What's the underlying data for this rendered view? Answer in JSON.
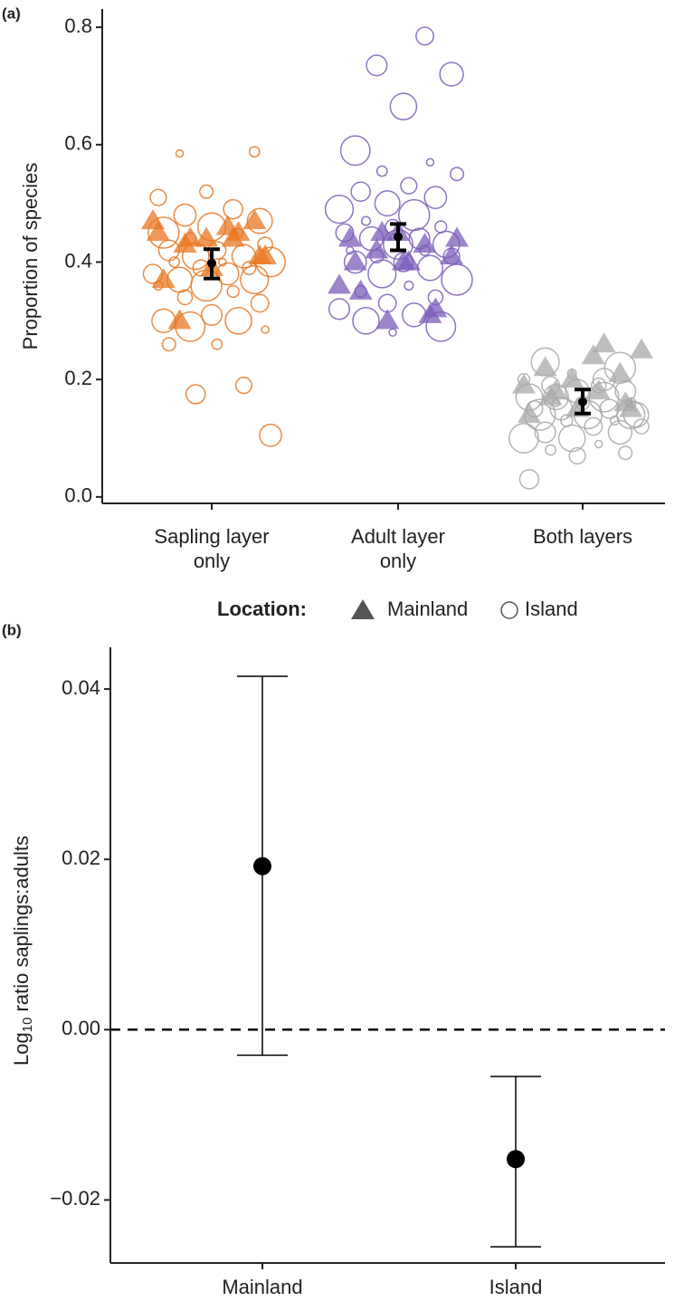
{
  "chart_data": [
    {
      "type": "jitter",
      "panel_label": "(a)",
      "y_label": "Proportion of species",
      "categories": [
        [
          "Sapling layer",
          "only"
        ],
        [
          "Adult layer",
          "only"
        ],
        [
          "Both layers"
        ]
      ],
      "colors": [
        "#e87722",
        "#7b5cb8",
        "#a8a8a8"
      ],
      "ylim": [
        -0.011,
        0.831
      ],
      "yticks": [
        {
          "value": 0,
          "label": "0.0"
        },
        0.2,
        0.4,
        0.6,
        0.8
      ],
      "legend_title": "Location:",
      "series": [
        {
          "name": "Mainland",
          "marker": "triangle",
          "values": [
            [
              0.47,
              0.46,
              0.3,
              0.47,
              0.44,
              0.45,
              0.44,
              0.43,
              0.41,
              0.39,
              0.37,
              0.45,
              0.44,
              0.41
            ],
            [
              0.45,
              0.44,
              0.43,
              0.42,
              0.41,
              0.4,
              0.4,
              0.31,
              0.45,
              0.44,
              0.4,
              0.35,
              0.32,
              0.3,
              0.36
            ],
            [
              0.25,
              0.24,
              0.22,
              0.21,
              0.2,
              0.19,
              0.18,
              0.17,
              0.16,
              0.15,
              0.14,
              0.26,
              0.18,
              0.15
            ]
          ]
        },
        {
          "name": "Island",
          "marker": "circle",
          "values": [
            [
              0.585,
              0.588,
              0.52,
              0.51,
              0.49,
              0.48,
              0.47,
              0.46,
              0.45,
              0.45,
              0.44,
              0.43,
              0.42,
              0.42,
              0.41,
              0.41,
              0.4,
              0.4,
              0.4,
              0.39,
              0.39,
              0.38,
              0.38,
              0.37,
              0.37,
              0.36,
              0.36,
              0.35,
              0.34,
              0.33,
              0.31,
              0.3,
              0.3,
              0.29,
              0.285,
              0.26,
              0.26,
              0.19,
              0.175,
              0.105
            ],
            [
              0.785,
              0.735,
              0.72,
              0.665,
              0.59,
              0.57,
              0.555,
              0.55,
              0.53,
              0.52,
              0.51,
              0.5,
              0.49,
              0.48,
              0.47,
              0.46,
              0.46,
              0.45,
              0.44,
              0.44,
              0.43,
              0.43,
              0.42,
              0.42,
              0.41,
              0.41,
              0.4,
              0.4,
              0.39,
              0.38,
              0.37,
              0.36,
              0.35,
              0.34,
              0.33,
              0.32,
              0.31,
              0.3,
              0.29,
              0.28
            ],
            [
              0.23,
              0.22,
              0.21,
              0.2,
              0.19,
              0.19,
              0.18,
              0.18,
              0.17,
              0.17,
              0.16,
              0.16,
              0.16,
              0.15,
              0.15,
              0.15,
              0.14,
              0.14,
              0.14,
              0.13,
              0.13,
              0.12,
              0.12,
              0.11,
              0.11,
              0.1,
              0.1,
              0.09,
              0.08,
              0.075,
              0.07,
              0.03,
              0.2,
              0.17,
              0.14
            ]
          ]
        }
      ],
      "means": [
        0.398,
        0.443,
        0.162
      ],
      "ci_low": [
        0.372,
        0.42,
        0.142
      ],
      "ci_high": [
        0.422,
        0.465,
        0.183
      ]
    },
    {
      "type": "errorbar",
      "panel_label": "(b)",
      "y_label": {
        "text": "Log",
        "subscript": "10",
        "rest": " ratio saplings:adults"
      },
      "categories": [
        "Mainland",
        "Island"
      ],
      "values": [
        0.0192,
        -0.0152
      ],
      "ci_low": [
        -0.003,
        -0.0255
      ],
      "ci_high": [
        0.0415,
        -0.0055
      ],
      "ylim": [
        -0.0274,
        0.0449
      ],
      "yticks": [
        {
          "value": -0.02,
          "label": "−0.02"
        },
        {
          "value": 0,
          "label": "0.00"
        },
        0.02,
        0.04
      ],
      "reference_line": 0
    }
  ]
}
